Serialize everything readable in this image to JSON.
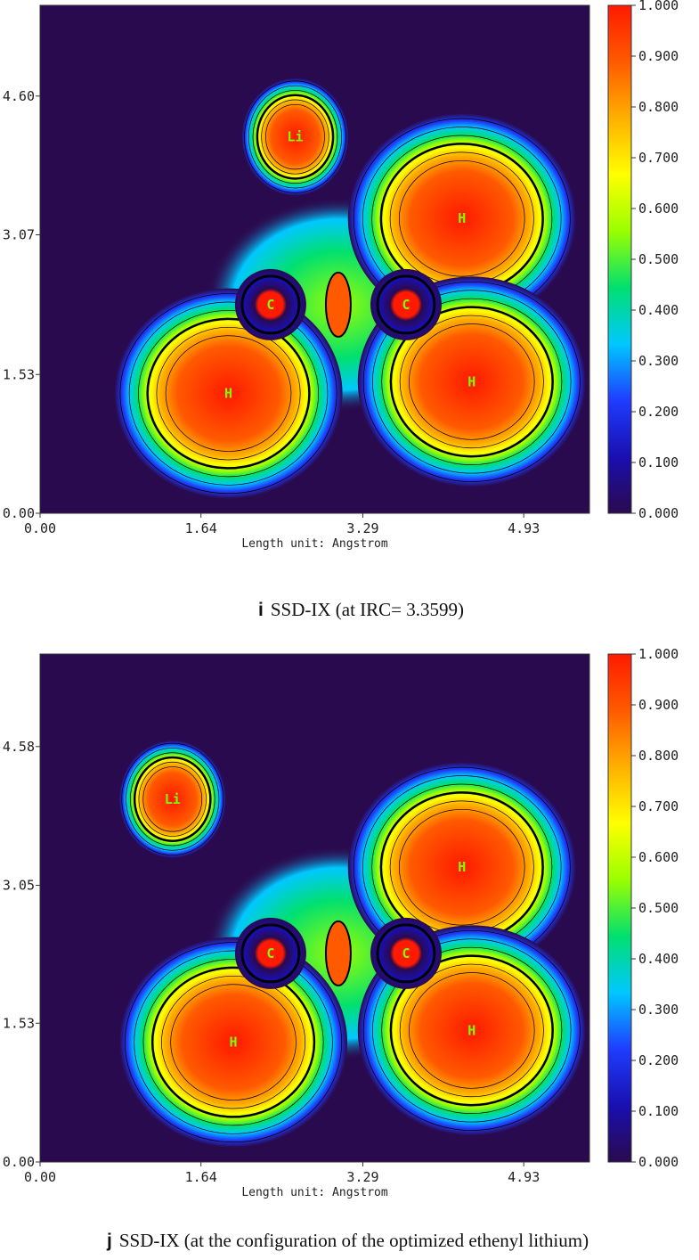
{
  "colors": {
    "bg": "#2a0a4e",
    "scale": [
      "#2a0a4e",
      "#1a0fb0",
      "#1f3cff",
      "#00c8ff",
      "#00e070",
      "#9aff00",
      "#ffff00",
      "#ffb000",
      "#ff5a00",
      "#ff1a00"
    ]
  },
  "chart_data": [
    {
      "type": "heatmap",
      "panel": "i",
      "title": "",
      "xlabel": "Length unit: Angstrom",
      "x_ticks": [
        "0.00",
        "1.64",
        "3.29",
        "4.93"
      ],
      "y_ticks": [
        "0.00",
        "1.53",
        "3.07",
        "4.60"
      ],
      "xlim": [
        0,
        5.6
      ],
      "ylim": [
        0,
        5.6
      ],
      "colorbar_ticks": [
        "0.000",
        "0.100",
        "0.200",
        "0.300",
        "0.400",
        "0.500",
        "0.600",
        "0.700",
        "0.800",
        "0.900",
        "1.000"
      ],
      "colorbar_range": [
        0,
        1
      ],
      "atoms": [
        {
          "label": "Li",
          "x": 2.6,
          "y": 4.15
        },
        {
          "label": "H",
          "x": 4.3,
          "y": 3.25
        },
        {
          "label": "C",
          "x": 2.35,
          "y": 2.3
        },
        {
          "label": "C",
          "x": 3.73,
          "y": 2.3
        },
        {
          "label": "H",
          "x": 1.92,
          "y": 1.32
        },
        {
          "label": "H",
          "x": 4.4,
          "y": 1.45
        }
      ],
      "caption_letter": "i",
      "caption_text": "SSD-IX (at IRC= 3.3599)"
    },
    {
      "type": "heatmap",
      "panel": "j",
      "title": "",
      "xlabel": "Length unit: Angstrom",
      "x_ticks": [
        "0.00",
        "1.64",
        "3.29",
        "4.93"
      ],
      "y_ticks": [
        "0.00",
        "1.53",
        "3.05",
        "4.58"
      ],
      "xlim": [
        0,
        5.6
      ],
      "ylim": [
        0,
        5.6
      ],
      "colorbar_ticks": [
        "0.000",
        "0.100",
        "0.200",
        "0.300",
        "0.400",
        "0.500",
        "0.600",
        "0.700",
        "0.800",
        "0.900",
        "1.000"
      ],
      "colorbar_range": [
        0,
        1
      ],
      "atoms": [
        {
          "label": "Li",
          "x": 1.35,
          "y": 4.0
        },
        {
          "label": "H",
          "x": 4.3,
          "y": 3.25
        },
        {
          "label": "C",
          "x": 2.35,
          "y": 2.3
        },
        {
          "label": "C",
          "x": 3.73,
          "y": 2.3
        },
        {
          "label": "H",
          "x": 1.97,
          "y": 1.32
        },
        {
          "label": "H",
          "x": 4.4,
          "y": 1.45
        }
      ],
      "caption_letter": "j",
      "caption_text": "SSD-IX (at the configuration of the optimized ethenyl lithium)"
    }
  ]
}
